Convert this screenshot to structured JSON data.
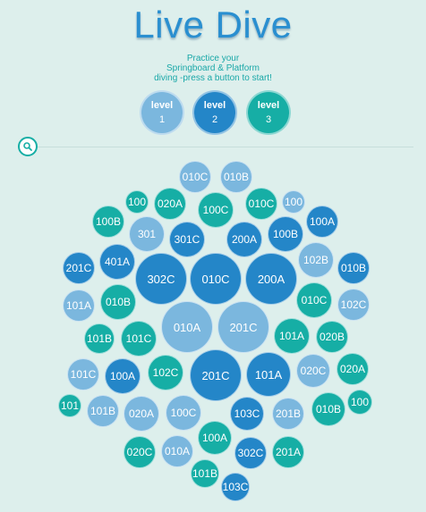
{
  "header": {
    "title": "Live Dive",
    "subtitle_lines": [
      "Practice your",
      "Springboard & Platform",
      "diving -press a button to start!"
    ]
  },
  "levels": [
    {
      "label": "level",
      "number": "1",
      "color": "#7bb7de"
    },
    {
      "label": "level",
      "number": "2",
      "color": "#2486c8"
    },
    {
      "label": "level",
      "number": "3",
      "color": "#16aea5"
    }
  ],
  "search": {
    "icon": "search-icon"
  },
  "colors": {
    "light": "#7bb7de",
    "dark": "#2486c8",
    "teal": "#16aea5"
  },
  "dives": [
    {
      "code": "010C",
      "color": "light"
    },
    {
      "code": "010B",
      "color": "light"
    },
    {
      "code": "100",
      "color": "teal"
    },
    {
      "code": "020A",
      "color": "teal"
    },
    {
      "code": "100C",
      "color": "teal"
    },
    {
      "code": "010C",
      "color": "teal"
    },
    {
      "code": "100",
      "color": "light"
    },
    {
      "code": "100B",
      "color": "teal"
    },
    {
      "code": "301",
      "color": "light"
    },
    {
      "code": "301C",
      "color": "dark"
    },
    {
      "code": "200A",
      "color": "dark"
    },
    {
      "code": "100B",
      "color": "dark"
    },
    {
      "code": "100A",
      "color": "dark"
    },
    {
      "code": "201C",
      "color": "dark"
    },
    {
      "code": "401A",
      "color": "dark"
    },
    {
      "code": "302C",
      "color": "dark"
    },
    {
      "code": "010C",
      "color": "dark"
    },
    {
      "code": "200A",
      "color": "dark"
    },
    {
      "code": "102B",
      "color": "light"
    },
    {
      "code": "010B",
      "color": "dark"
    },
    {
      "code": "101A",
      "color": "light"
    },
    {
      "code": "010B",
      "color": "teal"
    },
    {
      "code": "010C",
      "color": "teal"
    },
    {
      "code": "102C",
      "color": "light"
    },
    {
      "code": "010A",
      "color": "light"
    },
    {
      "code": "201C",
      "color": "light"
    },
    {
      "code": "101B",
      "color": "teal"
    },
    {
      "code": "101C",
      "color": "teal"
    },
    {
      "code": "101A",
      "color": "teal"
    },
    {
      "code": "020B",
      "color": "teal"
    },
    {
      "code": "101C",
      "color": "light"
    },
    {
      "code": "100A",
      "color": "dark"
    },
    {
      "code": "102C",
      "color": "teal"
    },
    {
      "code": "201C",
      "color": "dark"
    },
    {
      "code": "101A",
      "color": "dark"
    },
    {
      "code": "020C",
      "color": "light"
    },
    {
      "code": "020A",
      "color": "teal"
    },
    {
      "code": "101",
      "color": "teal"
    },
    {
      "code": "101B",
      "color": "light"
    },
    {
      "code": "020A",
      "color": "light"
    },
    {
      "code": "100C",
      "color": "light"
    },
    {
      "code": "103C",
      "color": "dark"
    },
    {
      "code": "201B",
      "color": "light"
    },
    {
      "code": "010B",
      "color": "teal"
    },
    {
      "code": "100",
      "color": "teal"
    },
    {
      "code": "100A",
      "color": "teal"
    },
    {
      "code": "020C",
      "color": "teal"
    },
    {
      "code": "010A",
      "color": "light"
    },
    {
      "code": "302C",
      "color": "dark"
    },
    {
      "code": "201A",
      "color": "teal"
    },
    {
      "code": "101B",
      "color": "teal"
    },
    {
      "code": "103C",
      "color": "dark"
    }
  ]
}
